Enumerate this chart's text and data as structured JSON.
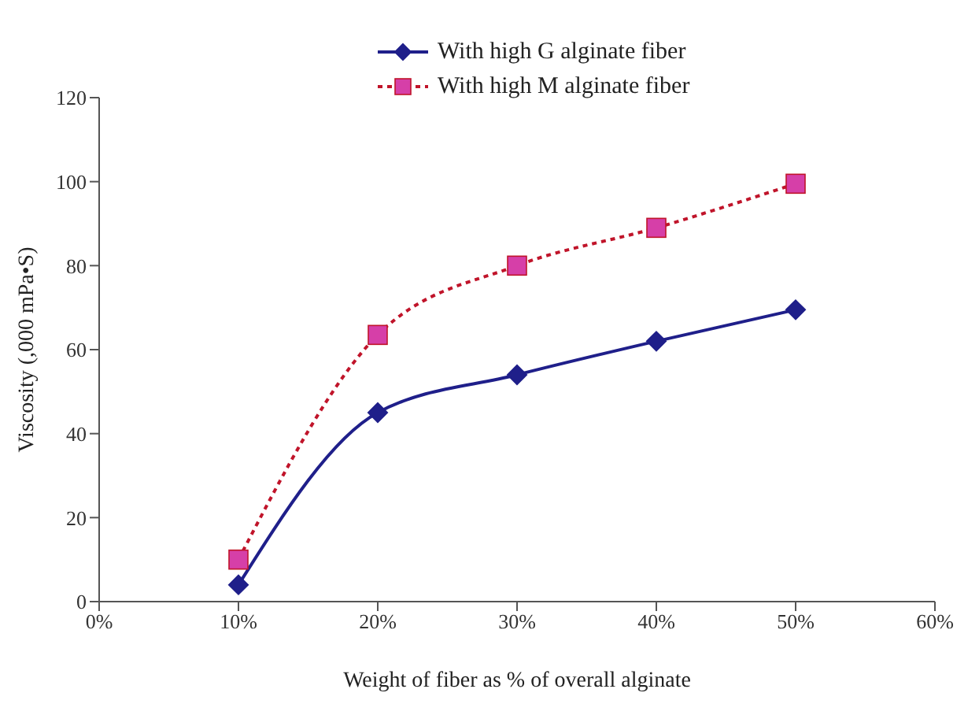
{
  "chart_data": {
    "type": "line",
    "xlabel": "Weight of fiber as % of overall alginate",
    "ylabel": "Viscosity (,000 mPa•S)",
    "x": [
      10,
      20,
      30,
      40,
      50
    ],
    "series": [
      {
        "name": "With high G alginate fiber",
        "color": "#1f1f8a",
        "values": [
          4,
          45,
          54,
          62,
          69.5
        ],
        "marker": "diamond",
        "line_style": "solid"
      },
      {
        "name": "With high M alginate fiber",
        "color": "#c0142a",
        "values": [
          10,
          63.5,
          80,
          89,
          99.5
        ],
        "marker": "square",
        "line_style": "dotted"
      }
    ],
    "xlim": [
      0,
      60
    ],
    "xticks": [
      {
        "value": 0,
        "label": "0%"
      },
      {
        "value": 10,
        "label": "10%"
      },
      {
        "value": 20,
        "label": "20%"
      },
      {
        "value": 30,
        "label": "30%"
      },
      {
        "value": 40,
        "label": "40%"
      },
      {
        "value": 50,
        "label": "50%"
      },
      {
        "value": 60,
        "label": "60%"
      }
    ],
    "ylim": [
      0,
      120
    ],
    "yticks": [
      0,
      20,
      40,
      60,
      80,
      100,
      120
    ],
    "grid": false,
    "legend": "top"
  }
}
